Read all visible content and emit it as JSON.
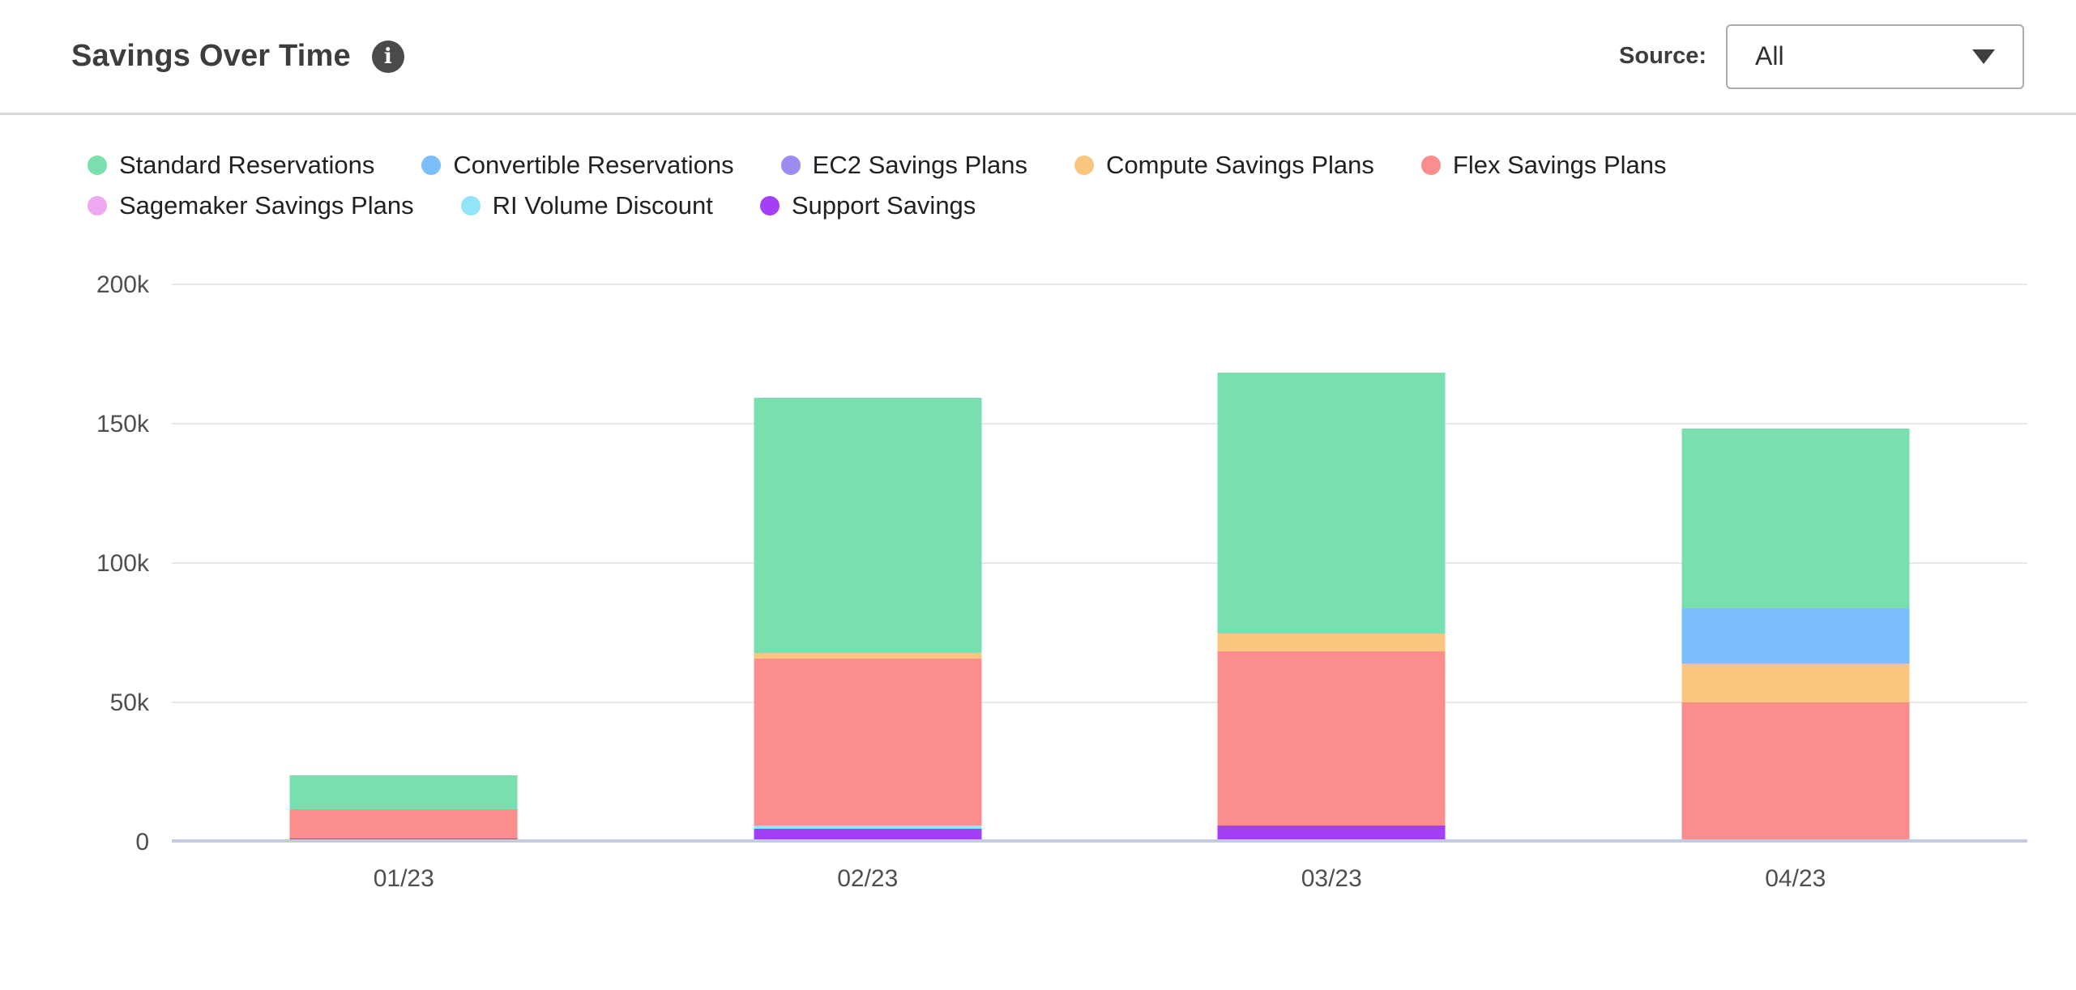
{
  "header": {
    "title": "Savings Over Time",
    "info_icon_glyph": "i",
    "source_label": "Source:",
    "source_value": "All"
  },
  "legend": {
    "rows": [
      [
        "Standard Reservations",
        "Convertible Reservations",
        "EC2 Savings Plans",
        "Compute Savings Plans",
        "Flex Savings Plans"
      ],
      [
        "Sagemaker Savings Plans",
        "RI Volume Discount",
        "Support Savings"
      ]
    ]
  },
  "chart_data": {
    "type": "bar",
    "stacked": true,
    "title": "Savings Over Time",
    "xlabel": "",
    "ylabel": "",
    "grid": true,
    "legend_position": "top",
    "ylim": [
      0,
      200000
    ],
    "yticks": [
      {
        "label": "0",
        "value": 0
      },
      {
        "label": "50k",
        "value": 50000
      },
      {
        "label": "100k",
        "value": 100000
      },
      {
        "label": "150k",
        "value": 150000
      },
      {
        "label": "200k",
        "value": 200000
      }
    ],
    "categories": [
      "01/23",
      "02/23",
      "03/23",
      "04/23"
    ],
    "series": [
      {
        "name": "Standard Reservations",
        "color": "#79DFAF",
        "values": [
          12300,
          91500,
          93500,
          64800
        ]
      },
      {
        "name": "Convertible Reservations",
        "color": "#7CBDFB",
        "values": [
          0,
          0,
          0,
          19500
        ]
      },
      {
        "name": "EC2 Savings Plans",
        "color": "#9B8CF0",
        "values": [
          0,
          0,
          0,
          0
        ]
      },
      {
        "name": "Compute Savings Plans",
        "color": "#F8C67E",
        "values": [
          0,
          2000,
          6500,
          14000
        ]
      },
      {
        "name": "Flex Savings Plans",
        "color": "#FC8D8D",
        "values": [
          10300,
          59900,
          62500,
          49800
        ]
      },
      {
        "name": "Sagemaker Savings Plans",
        "color": "#F0A9F0",
        "values": [
          0,
          0,
          0,
          0
        ]
      },
      {
        "name": "RI Volume Discount",
        "color": "#92E4F7",
        "values": [
          0,
          1100,
          0,
          0
        ]
      },
      {
        "name": "Support Savings",
        "color": "#A33FF6",
        "values": [
          1000,
          4500,
          5500,
          0
        ]
      }
    ],
    "stack_order_bottom_to_top": [
      "Support Savings",
      "RI Volume Discount",
      "Flex Savings Plans",
      "Compute Savings Plans",
      "Convertible Reservations",
      "EC2 Savings Plans",
      "Sagemaker Savings Plans",
      "Standard Reservations"
    ],
    "axis_colors": {
      "gridline": "#e8e8e8",
      "zero_line": "#c3cae2",
      "tick_text": "#4f4f4f"
    }
  }
}
